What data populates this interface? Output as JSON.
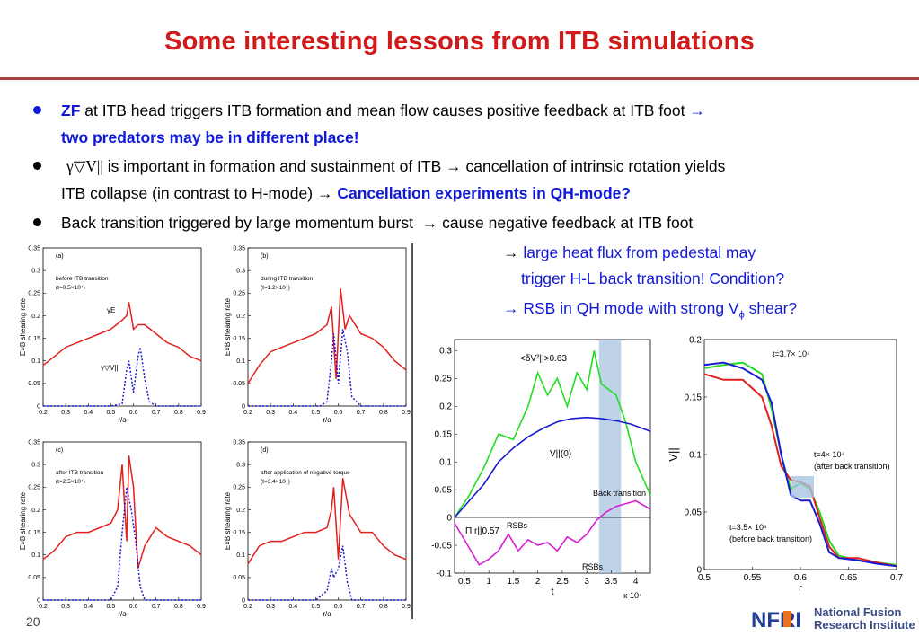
{
  "slide": {
    "title": "Some interesting lessons from ITB simulations",
    "page_number": "20",
    "institute_logo": "NFRI",
    "institute_name_line1": "National Fusion",
    "institute_name_line2": "Research Institute"
  },
  "bullets": [
    {
      "lead": "ZF",
      "text": " at ITB head triggers ITB formation and mean flow causes positive feedback at ITB foot ",
      "arrow": "→",
      "second_line": "two predators may be in different place!"
    },
    {
      "lead": "γ▽V||",
      "text": " is important in formation and sustainment of ITB ",
      "arrow": "→",
      "text2": " cancellation of intrinsic rotation yields",
      "second_line_plain": "ITB collapse (in contrast to H-mode) ",
      "second_line": "Cancellation experiments in QH-mode?"
    },
    {
      "text": "Back transition triggered by large momentum burst ",
      "arrow": "→",
      "text2": " cause negative feedback at ITB foot"
    }
  ],
  "notes": [
    {
      "arrow": "→",
      "text": " large heat flux from pedestal may"
    },
    {
      "text": "trigger H-L back transition! Condition?"
    },
    {
      "arrow": "→",
      "text": " RSB in QH mode with strong V",
      "sub": "ϕ",
      "text2": " shear?"
    }
  ],
  "colors": {
    "title": "#d11a1a",
    "emph": "#1018d9",
    "rule": "#a9423f",
    "red": "#e32020",
    "blue": "#1a1ad0",
    "green": "#22dd22",
    "magenta": "#d61fd6",
    "shade": "#a8c4e0"
  },
  "chart_data": [
    {
      "type": "line",
      "panel": "(a)",
      "subtitle": "before ITB transition",
      "time_label": "(t=0.5×10⁴)",
      "xlabel": "r/a",
      "ylabel": "E×B shearing rate",
      "xlim": [
        0.2,
        0.9
      ],
      "ylim": [
        0,
        0.35
      ],
      "xticks": [
        "0.2",
        "0.3",
        "0.4",
        "0.5",
        "0.6",
        "0.7",
        "0.8",
        "0.9"
      ],
      "yticks": [
        "0",
        "0.05",
        "0.1",
        "0.15",
        "0.2",
        "0.25",
        "0.3",
        "0.35"
      ],
      "annotations": [
        "γE",
        "γ▽V||"
      ],
      "series": [
        {
          "name": "γE",
          "style": "solid",
          "color": "red",
          "x": [
            0.2,
            0.25,
            0.3,
            0.35,
            0.4,
            0.45,
            0.5,
            0.55,
            0.57,
            0.58,
            0.6,
            0.62,
            0.65,
            0.7,
            0.75,
            0.8,
            0.85,
            0.9
          ],
          "y": [
            0.09,
            0.11,
            0.13,
            0.14,
            0.15,
            0.16,
            0.17,
            0.19,
            0.2,
            0.23,
            0.17,
            0.18,
            0.18,
            0.16,
            0.14,
            0.13,
            0.11,
            0.1
          ]
        },
        {
          "name": "γ▽V||",
          "style": "dotted",
          "color": "blue",
          "x": [
            0.2,
            0.5,
            0.55,
            0.57,
            0.58,
            0.6,
            0.62,
            0.63,
            0.65,
            0.67,
            0.7,
            0.9
          ],
          "y": [
            0,
            0,
            0.005,
            0.08,
            0.1,
            0.03,
            0.11,
            0.13,
            0.06,
            0.01,
            0,
            0
          ]
        }
      ]
    },
    {
      "type": "line",
      "panel": "(b)",
      "subtitle": "during ITB transition",
      "time_label": "(t=1.2×10⁴)",
      "xlabel": "r/a",
      "ylabel": "E×B shearing rate",
      "xlim": [
        0.2,
        0.9
      ],
      "ylim": [
        0,
        0.35
      ],
      "xticks": [
        "0.2",
        "0.3",
        "0.4",
        "0.5",
        "0.6",
        "0.7",
        "0.8",
        "0.9"
      ],
      "yticks": [
        "0",
        "0.05",
        "0.1",
        "0.15",
        "0.2",
        "0.25",
        "0.3",
        "0.35"
      ],
      "series": [
        {
          "name": "γE",
          "style": "solid",
          "color": "red",
          "x": [
            0.2,
            0.25,
            0.3,
            0.35,
            0.4,
            0.45,
            0.5,
            0.55,
            0.57,
            0.59,
            0.61,
            0.63,
            0.65,
            0.7,
            0.75,
            0.8,
            0.85,
            0.9
          ],
          "y": [
            0.05,
            0.09,
            0.12,
            0.13,
            0.14,
            0.15,
            0.16,
            0.18,
            0.22,
            0.06,
            0.26,
            0.17,
            0.2,
            0.16,
            0.15,
            0.13,
            0.1,
            0.08
          ]
        },
        {
          "name": "γ▽V||",
          "style": "dotted",
          "color": "blue",
          "x": [
            0.2,
            0.52,
            0.55,
            0.57,
            0.58,
            0.6,
            0.62,
            0.64,
            0.66,
            0.7,
            0.9
          ],
          "y": [
            0,
            0,
            0.01,
            0.1,
            0.16,
            0.05,
            0.17,
            0.12,
            0.02,
            0,
            0
          ]
        }
      ]
    },
    {
      "type": "line",
      "panel": "(c)",
      "subtitle": "after ITB transition",
      "time_label": "(t=2.5×10⁴)",
      "xlabel": "r/a",
      "ylabel": "E×B shearing rate",
      "xlim": [
        0.2,
        0.9
      ],
      "ylim": [
        0,
        0.35
      ],
      "xticks": [
        "0.2",
        "0.3",
        "0.4",
        "0.5",
        "0.6",
        "0.7",
        "0.8",
        "0.9"
      ],
      "yticks": [
        "0",
        "0.05",
        "0.1",
        "0.15",
        "0.2",
        "0.25",
        "0.3",
        "0.35"
      ],
      "series": [
        {
          "name": "γE",
          "style": "solid",
          "color": "red",
          "x": [
            0.2,
            0.25,
            0.3,
            0.35,
            0.4,
            0.45,
            0.5,
            0.53,
            0.55,
            0.57,
            0.58,
            0.6,
            0.62,
            0.65,
            0.7,
            0.75,
            0.8,
            0.85,
            0.9
          ],
          "y": [
            0.09,
            0.11,
            0.14,
            0.15,
            0.15,
            0.16,
            0.17,
            0.2,
            0.3,
            0.13,
            0.32,
            0.25,
            0.07,
            0.12,
            0.16,
            0.14,
            0.13,
            0.12,
            0.1
          ]
        },
        {
          "name": "γ▽V||",
          "style": "dotted",
          "color": "blue",
          "x": [
            0.2,
            0.5,
            0.53,
            0.55,
            0.57,
            0.59,
            0.61,
            0.63,
            0.65,
            0.9
          ],
          "y": [
            0,
            0,
            0.03,
            0.15,
            0.25,
            0.2,
            0.13,
            0.03,
            0,
            0
          ]
        }
      ]
    },
    {
      "type": "line",
      "panel": "(d)",
      "subtitle": "after application of negative torque",
      "time_label": "(t=3.4×10⁴)",
      "xlabel": "r/a",
      "ylabel": "E×B shearing rate",
      "xlim": [
        0.2,
        0.9
      ],
      "ylim": [
        0,
        0.35
      ],
      "xticks": [
        "0.2",
        "0.3",
        "0.4",
        "0.5",
        "0.6",
        "0.7",
        "0.8",
        "0.9"
      ],
      "yticks": [
        "0",
        "0.05",
        "0.1",
        "0.15",
        "0.2",
        "0.25",
        "0.3",
        "0.35"
      ],
      "series": [
        {
          "name": "γE",
          "style": "solid",
          "color": "red",
          "x": [
            0.2,
            0.25,
            0.3,
            0.35,
            0.4,
            0.45,
            0.5,
            0.55,
            0.57,
            0.58,
            0.6,
            0.62,
            0.65,
            0.7,
            0.75,
            0.8,
            0.85,
            0.9
          ],
          "y": [
            0.08,
            0.12,
            0.13,
            0.13,
            0.14,
            0.15,
            0.15,
            0.16,
            0.2,
            0.25,
            0.09,
            0.27,
            0.19,
            0.15,
            0.15,
            0.12,
            0.1,
            0.09
          ]
        },
        {
          "name": "γ▽V||",
          "style": "dotted",
          "color": "blue",
          "x": [
            0.2,
            0.5,
            0.55,
            0.57,
            0.58,
            0.6,
            0.62,
            0.64,
            0.66,
            0.9
          ],
          "y": [
            0,
            0,
            0.02,
            0.07,
            0.05,
            0.07,
            0.12,
            0.04,
            0,
            0
          ]
        }
      ]
    },
    {
      "type": "line",
      "xlabel": "t",
      "x_multiplier": "x 10⁴",
      "xlim": [
        0.3,
        4.3
      ],
      "ylim": [
        -0.1,
        0.32
      ],
      "xticks": [
        "0.5",
        "1",
        "1.5",
        "2",
        "2.5",
        "3",
        "3.5",
        "4"
      ],
      "yticks": [
        "-0.1",
        "-0.05",
        "0",
        "0.05",
        "0.1",
        "0.15",
        "0.2",
        "0.25",
        "0.3"
      ],
      "annotations": [
        "<δV²||>0.63",
        "V||(0)",
        "Π r||0.57",
        "RSBs",
        "RSBs",
        "Back transition"
      ],
      "shaded_region": [
        3.25,
        3.7
      ],
      "series": [
        {
          "name": "<δV²||>0.63",
          "color": "green",
          "x": [
            0.3,
            0.6,
            0.9,
            1.2,
            1.5,
            1.8,
            2.0,
            2.2,
            2.4,
            2.6,
            2.8,
            3.0,
            3.15,
            3.3,
            3.6,
            3.8,
            4.0,
            4.3
          ],
          "y": [
            0.0,
            0.04,
            0.09,
            0.15,
            0.14,
            0.2,
            0.26,
            0.22,
            0.25,
            0.2,
            0.26,
            0.23,
            0.3,
            0.24,
            0.22,
            0.17,
            0.1,
            0.04
          ]
        },
        {
          "name": "V||(0)",
          "color": "blue",
          "x": [
            0.3,
            0.6,
            0.9,
            1.2,
            1.5,
            1.8,
            2.1,
            2.4,
            2.7,
            3.0,
            3.3,
            3.6,
            3.9,
            4.3
          ],
          "y": [
            0.0,
            0.03,
            0.06,
            0.1,
            0.125,
            0.145,
            0.16,
            0.172,
            0.178,
            0.18,
            0.178,
            0.174,
            0.168,
            0.155
          ]
        },
        {
          "name": "Π r||0.57",
          "color": "magenta",
          "x": [
            0.3,
            0.5,
            0.8,
            1.0,
            1.2,
            1.4,
            1.6,
            1.8,
            2.0,
            2.2,
            2.4,
            2.6,
            2.8,
            3.0,
            3.2,
            3.4,
            3.6,
            3.8,
            4.0,
            4.3
          ],
          "y": [
            -0.01,
            -0.04,
            -0.085,
            -0.075,
            -0.06,
            -0.03,
            -0.06,
            -0.04,
            -0.05,
            -0.045,
            -0.06,
            -0.035,
            -0.045,
            -0.03,
            -0.005,
            0.01,
            0.02,
            0.025,
            0.03,
            0.015
          ]
        }
      ]
    },
    {
      "type": "line",
      "xlabel": "r",
      "ylabel": "V||",
      "xlim": [
        0.5,
        0.7
      ],
      "ylim": [
        0,
        0.2
      ],
      "xticks": [
        "0.5",
        "0.55",
        "0.6",
        "0.65",
        "0.7"
      ],
      "yticks": [
        "0",
        "0.05",
        "0.1",
        "0.15",
        "0.2"
      ],
      "annotations": [
        "t=3.7× 10⁴",
        "t=4× 10⁴",
        "(after back transition)",
        "t=3.5× 10⁴",
        "(before back transition)"
      ],
      "series": [
        {
          "name": "t=3.7× 10⁴",
          "color": "green",
          "x": [
            0.5,
            0.52,
            0.54,
            0.56,
            0.57,
            0.58,
            0.59,
            0.6,
            0.61,
            0.62,
            0.63,
            0.64,
            0.66,
            0.68,
            0.7
          ],
          "y": [
            0.175,
            0.178,
            0.18,
            0.17,
            0.14,
            0.1,
            0.07,
            0.075,
            0.07,
            0.05,
            0.025,
            0.012,
            0.008,
            0.006,
            0.004
          ]
        },
        {
          "name": "t=4× 10⁴",
          "color": "red",
          "x": [
            0.5,
            0.52,
            0.54,
            0.56,
            0.57,
            0.58,
            0.59,
            0.6,
            0.61,
            0.62,
            0.63,
            0.64,
            0.66,
            0.68,
            0.7
          ],
          "y": [
            0.17,
            0.165,
            0.165,
            0.15,
            0.125,
            0.09,
            0.078,
            0.076,
            0.072,
            0.045,
            0.02,
            0.01,
            0.01,
            0.006,
            0.003
          ]
        },
        {
          "name": "t=3.5× 10⁴",
          "color": "blue",
          "x": [
            0.5,
            0.52,
            0.54,
            0.56,
            0.57,
            0.58,
            0.59,
            0.6,
            0.61,
            0.62,
            0.63,
            0.64,
            0.66,
            0.68,
            0.7
          ],
          "y": [
            0.178,
            0.18,
            0.175,
            0.165,
            0.145,
            0.1,
            0.065,
            0.06,
            0.06,
            0.04,
            0.015,
            0.01,
            0.008,
            0.005,
            0.003
          ]
        }
      ]
    }
  ]
}
